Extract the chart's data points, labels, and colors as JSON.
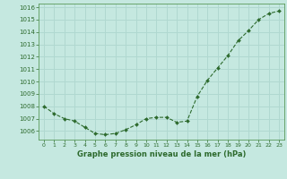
{
  "x": [
    0,
    1,
    2,
    3,
    4,
    5,
    6,
    7,
    8,
    9,
    10,
    11,
    12,
    13,
    14,
    15,
    16,
    17,
    18,
    19,
    20,
    21,
    22,
    23
  ],
  "y": [
    1008.0,
    1007.4,
    1007.0,
    1006.8,
    1006.3,
    1005.8,
    1005.7,
    1005.8,
    1006.1,
    1006.5,
    1007.0,
    1007.1,
    1007.1,
    1006.7,
    1006.8,
    1008.8,
    1010.1,
    1011.1,
    1012.1,
    1013.3,
    1014.1,
    1015.0,
    1015.5,
    1015.7
  ],
  "line_color": "#2d6a2d",
  "marker": "D",
  "marker_size": 2.0,
  "bg_color": "#c5e8e0",
  "grid_color": "#b0d8d0",
  "xlabel": "Graphe pression niveau de la mer (hPa)",
  "xlabel_color": "#2d6a2d",
  "tick_color": "#2d6a2d",
  "spine_color": "#5a9a5a",
  "ylim": [
    1005.3,
    1016.3
  ],
  "yticks": [
    1006,
    1007,
    1008,
    1009,
    1010,
    1011,
    1012,
    1013,
    1014,
    1015,
    1016
  ],
  "xlim": [
    -0.5,
    23.5
  ],
  "xticks": [
    0,
    1,
    2,
    3,
    4,
    5,
    6,
    7,
    8,
    9,
    10,
    11,
    12,
    13,
    14,
    15,
    16,
    17,
    18,
    19,
    20,
    21,
    22,
    23
  ],
  "xtick_labels": [
    "0",
    "1",
    "2",
    "3",
    "4",
    "5",
    "6",
    "7",
    "8",
    "9",
    "10",
    "11",
    "12",
    "13",
    "14",
    "15",
    "16",
    "17",
    "18",
    "19",
    "20",
    "21",
    "22",
    "23"
  ]
}
